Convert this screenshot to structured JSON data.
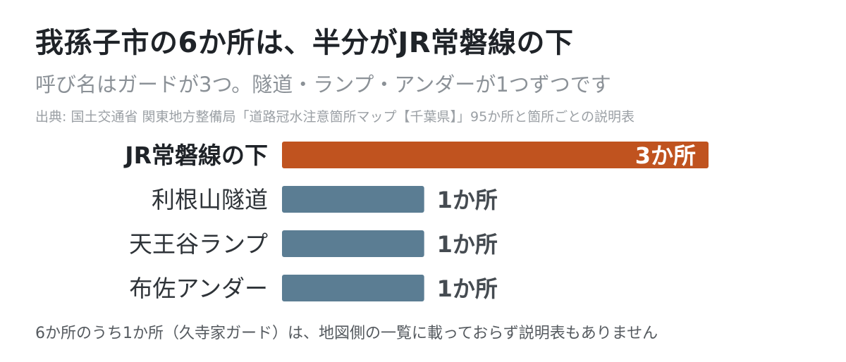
{
  "title": "我孫子市の6か所は、半分がJR常磐線の下",
  "subtitle": "呼び名はガードが3つ。隧道・ランプ・アンダーが1つずつです",
  "source": "出典: 国土交通省 関東地方整備局「道路冠水注意箇所マップ【千葉県】」95か所と箇所ごとの説明表",
  "note": "6か所のうち1か所（久寺家ガード）は、地図側の一覧に載っておらず説明表もありません",
  "colors": {
    "highlight": "#c0531f",
    "default": "#5b7d93"
  },
  "chart_data": {
    "type": "bar",
    "orientation": "horizontal",
    "categories": [
      "JR常磐線の下",
      "利根山隧道",
      "天王谷ランプ",
      "布佐アンダー"
    ],
    "values": [
      3,
      1,
      1,
      1
    ],
    "value_labels": [
      "3か所",
      "1か所",
      "1か所",
      "1か所"
    ],
    "highlight_index": 0,
    "xlim": [
      0,
      3
    ],
    "grid": false,
    "legend": "none"
  }
}
